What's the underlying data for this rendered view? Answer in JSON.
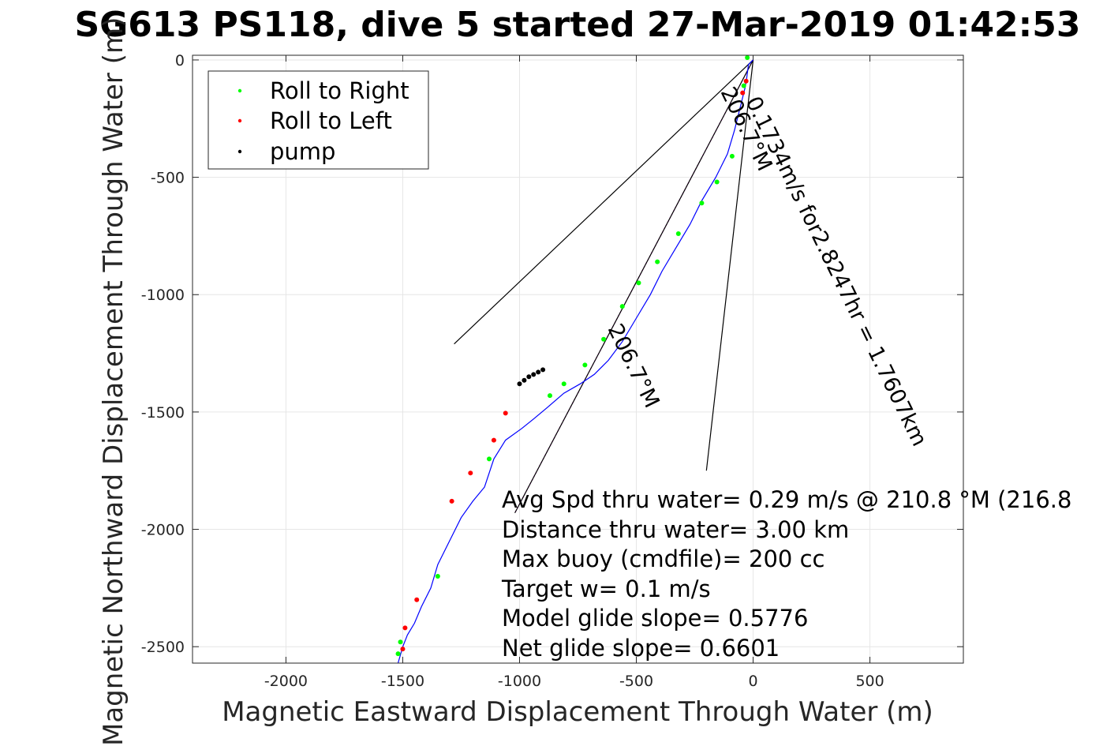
{
  "chart_data": {
    "type": "line",
    "title": "SG613 PS118, dive 5 started 27-Mar-2019 01:42:53",
    "xlabel": "Magnetic Eastward Displacement Through Water (m)",
    "ylabel": "Magnetic Northward Displacement Through Water (m)",
    "xlim": [
      -2400,
      900
    ],
    "ylim": [
      -2570,
      20
    ],
    "xticks": [
      -2000,
      -1500,
      -1000,
      -500,
      0,
      500
    ],
    "yticks": [
      0,
      -500,
      -1000,
      -1500,
      -2000,
      -2500
    ],
    "grid": true,
    "legend": {
      "placement": "top-left",
      "entries": [
        {
          "name": "Roll to Right",
          "color": "#00ff00"
        },
        {
          "name": "Roll to Left",
          "color": "#ff0000"
        },
        {
          "name": "pump",
          "color": "#000000"
        }
      ]
    },
    "colors": {
      "track": "#0000ff",
      "roll_right": "#00ff00",
      "roll_left": "#ff0000",
      "pump": "#000000",
      "current": "#ff00ff"
    },
    "track": {
      "x": [
        0,
        -20,
        -28,
        -35,
        -55,
        -80,
        -110,
        -160,
        -220,
        -270,
        -330,
        -390,
        -440,
        -500,
        -560,
        -620,
        -680,
        -740,
        -810,
        -880,
        -940,
        -990,
        -1060,
        -1110,
        -1130,
        -1150,
        -1200,
        -1250,
        -1300,
        -1350,
        -1380,
        -1420,
        -1450,
        -1480,
        -1500,
        -1520
      ],
      "y": [
        0,
        -20,
        -80,
        -120,
        -200,
        -300,
        -400,
        -500,
        -600,
        -700,
        -800,
        -900,
        -1000,
        -1100,
        -1200,
        -1280,
        -1340,
        -1380,
        -1420,
        -1480,
        -1530,
        -1570,
        -1620,
        -1700,
        -1760,
        -1820,
        -1880,
        -1950,
        -2050,
        -2150,
        -2250,
        -2330,
        -2400,
        -2450,
        -2500,
        -2570
      ]
    },
    "roll_right_points": {
      "x": [
        -25,
        -40,
        -90,
        -155,
        -220,
        -320,
        -410,
        -490,
        -560,
        -640,
        -720,
        -810,
        -870,
        -1130,
        -1350,
        -1510,
        -1520
      ],
      "y": [
        10,
        -110,
        -410,
        -520,
        -610,
        -740,
        -860,
        -950,
        -1050,
        -1190,
        -1300,
        -1380,
        -1430,
        -1700,
        -2200,
        -2480,
        -2530
      ]
    },
    "roll_left_points": {
      "x": [
        -30,
        -45,
        -1060,
        -1110,
        -1210,
        -1290,
        -1440,
        -1490,
        -1500
      ],
      "y": [
        -90,
        -140,
        -1505,
        -1620,
        -1760,
        -1880,
        -2300,
        -2420,
        -2510
      ]
    },
    "pump_points": {
      "x": [
        -1000,
        -980,
        -960,
        -940,
        -920,
        -900
      ],
      "y": [
        -1380,
        -1365,
        -1350,
        -1340,
        -1330,
        -1320
      ]
    },
    "current_vector": {
      "x": [
        0,
        -1020
      ],
      "y": [
        0,
        -1930
      ]
    },
    "heading_lines": [
      {
        "x": [
          0,
          -1280
        ],
        "y": [
          0,
          -1210
        ]
      },
      {
        "x": [
          0,
          -200
        ],
        "y": [
          0,
          -1750
        ]
      }
    ],
    "rotated_label_1": "0.1734m/s for2.8247hr = 1.7607km",
    "rotated_label_2": "206.7°M",
    "rotated_label_3": "206.7°M",
    "annotations": [
      "Avg Spd thru water=  0.29 m/s @ 210.8 °M (216.8",
      "Distance thru water=  3.00 km",
      "Max buoy (cmdfile)= 200 cc",
      "Target w= 0.1 m/s",
      "Model glide slope= 0.5776",
      "Net glide slope= 0.6601"
    ]
  }
}
